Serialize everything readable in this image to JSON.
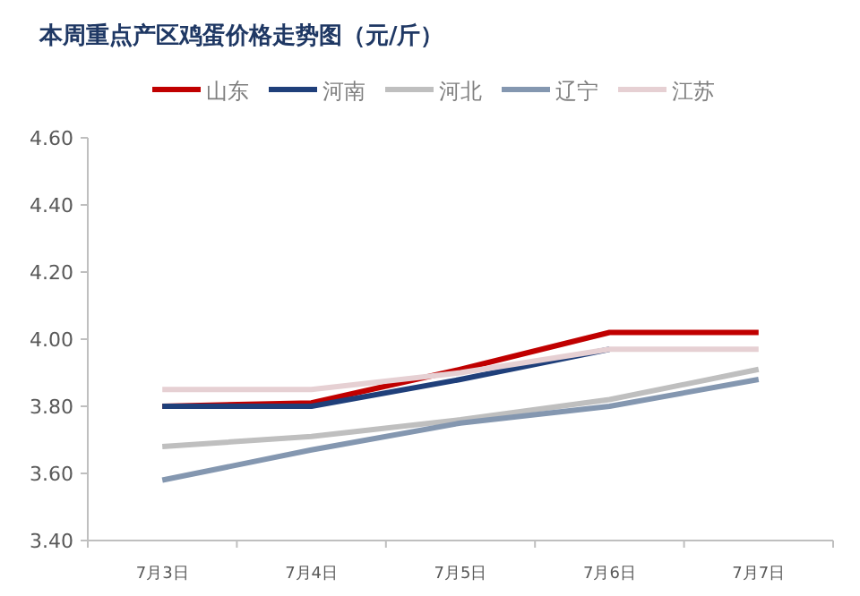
{
  "chart_data": {
    "type": "line",
    "title": "本周重点产区鸡蛋价格走势图（元/斤）",
    "categories": [
      "7月3日",
      "7月4日",
      "7月5日",
      "7月6日",
      "7月7日"
    ],
    "series": [
      {
        "name": "山东",
        "color": "#c00000",
        "values": [
          3.8,
          3.81,
          3.91,
          4.02,
          4.02
        ]
      },
      {
        "name": "河南",
        "color": "#1f3f7a",
        "values": [
          3.8,
          3.8,
          3.88,
          3.97,
          null
        ]
      },
      {
        "name": "河北",
        "color": "#bfbfbf",
        "values": [
          3.68,
          3.71,
          3.76,
          3.82,
          3.91
        ]
      },
      {
        "name": "辽宁",
        "color": "#8497b0",
        "values": [
          3.58,
          3.67,
          3.75,
          3.8,
          3.88
        ]
      },
      {
        "name": "江苏",
        "color": "#e6d0d3",
        "values": [
          3.85,
          3.85,
          3.9,
          3.97,
          3.97
        ]
      }
    ],
    "ylim": [
      3.4,
      4.6
    ],
    "yticks": [
      {
        "value": 3.4,
        "label": "3.40"
      },
      {
        "value": 3.6,
        "label": "3.60"
      },
      {
        "value": 3.8,
        "label": "3.80"
      },
      {
        "value": 4.0,
        "label": "4.00"
      },
      {
        "value": 4.2,
        "label": "4.20"
      },
      {
        "value": 4.4,
        "label": "4.40"
      },
      {
        "value": 4.6,
        "label": "4.60"
      }
    ],
    "grid": false,
    "legend": "top",
    "marker": "none",
    "line_style": "solid"
  }
}
